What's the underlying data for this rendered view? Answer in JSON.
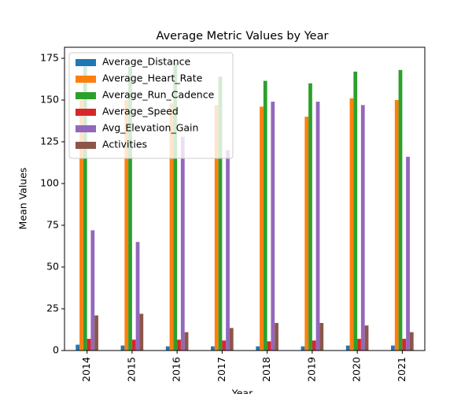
{
  "chart_data": {
    "type": "bar",
    "title": "Average Metric Values by Year",
    "x_label": "Year",
    "y_label": "Mean Values",
    "categories": [
      "2014",
      "2015",
      "2016",
      "2017",
      "2018",
      "2019",
      "2020",
      "2021"
    ],
    "series": [
      {
        "name": "Average_Distance",
        "color": "#1f77b4",
        "values": [
          3.5,
          3,
          2.5,
          2.5,
          2.5,
          2.5,
          3,
          3
        ]
      },
      {
        "name": "Average_Heart_Rate",
        "color": "#ff7f0e",
        "values": [
          150,
          150,
          148,
          147,
          146,
          140,
          151,
          150
        ]
      },
      {
        "name": "Average_Run_Cadence",
        "color": "#2ca02c",
        "values": [
          170,
          170,
          172,
          164,
          161.5,
          160,
          167,
          168
        ]
      },
      {
        "name": "Average_Speed",
        "color": "#d62728",
        "values": [
          7,
          6.5,
          6.5,
          6,
          5.5,
          6,
          7,
          7
        ]
      },
      {
        "name": "Avg_Elevation_Gain",
        "color": "#9467bd",
        "values": [
          72,
          65,
          128,
          120,
          149,
          149,
          147,
          116
        ]
      },
      {
        "name": "Activities",
        "color": "#8c564b",
        "values": [
          21,
          22,
          11,
          13.5,
          16.5,
          16.5,
          15,
          11
        ]
      }
    ],
    "ylim": [
      0,
      181.6
    ],
    "yticks": [
      0,
      25,
      50,
      75,
      100,
      125,
      150,
      175
    ],
    "grid": false,
    "legend": "upper left"
  }
}
